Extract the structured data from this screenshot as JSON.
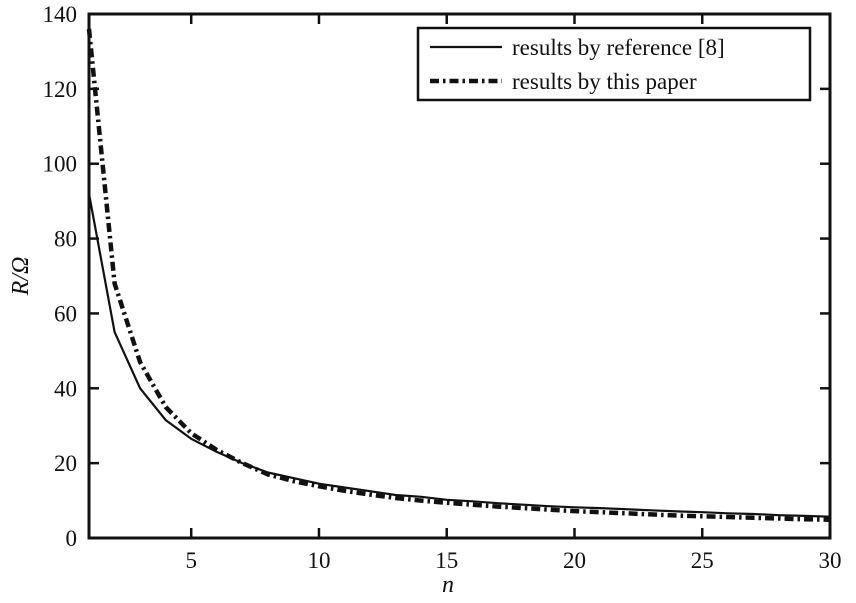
{
  "chart_data": {
    "type": "line",
    "xlabel": "n",
    "ylabel": "R/Ω",
    "xlim": [
      1,
      30
    ],
    "ylim": [
      0,
      140
    ],
    "xticks": [
      5,
      10,
      15,
      20,
      25,
      30
    ],
    "yticks": [
      0,
      20,
      40,
      60,
      80,
      100,
      120,
      140
    ],
    "grid": false,
    "legend_position": "top-right",
    "x": [
      1,
      2,
      3,
      4,
      5,
      6,
      7,
      8,
      9,
      10,
      11,
      12,
      13,
      14,
      15,
      16,
      17,
      18,
      19,
      20,
      21,
      22,
      23,
      24,
      25,
      26,
      27,
      28,
      29,
      30
    ],
    "series": [
      {
        "name": "results by reference [8]",
        "style": "solid",
        "color": "#111111",
        "values": [
          92,
          55,
          40,
          31.5,
          26.5,
          23,
          20,
          17.5,
          16,
          14.5,
          13.5,
          12.5,
          11.5,
          11,
          10.2,
          9.8,
          9.3,
          8.9,
          8.5,
          8.2,
          8.0,
          7.7,
          7.4,
          7.1,
          6.9,
          6.6,
          6.4,
          6.1,
          5.9,
          5.7
        ]
      },
      {
        "name": "results by this paper",
        "style": "dashdot",
        "color": "#111111",
        "values": [
          136,
          68,
          47,
          35,
          28,
          23.5,
          20,
          17,
          15.2,
          13.8,
          12.6,
          11.6,
          10.7,
          10,
          9.4,
          8.9,
          8.4,
          8.0,
          7.6,
          7.2,
          6.9,
          6.6,
          6.3,
          6.0,
          5.8,
          5.6,
          5.4,
          5.2,
          5.0,
          4.9
        ]
      }
    ]
  }
}
